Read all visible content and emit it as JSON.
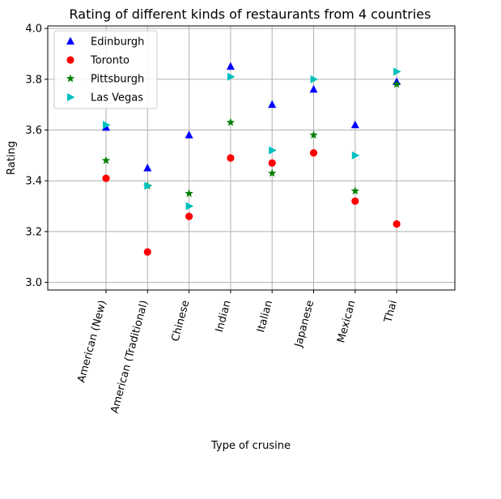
{
  "chart_data": {
    "type": "scatter",
    "title": "Rating of different kinds of restaurants from 4 countries",
    "xlabel": "Type of crusine",
    "ylabel": "Rating",
    "categories": [
      "American (New)",
      "American (Traditional)",
      "Chinese",
      "Indian",
      "Italian",
      "Japanese",
      "Mexican",
      "Thai"
    ],
    "ylim": [
      2.97,
      4.01
    ],
    "yticks": [
      "3.0",
      "3.2",
      "3.4",
      "3.6",
      "3.8",
      "4.0"
    ],
    "ytick_values": [
      3.0,
      3.2,
      3.4,
      3.6,
      3.8,
      4.0
    ],
    "grid": true,
    "legend_position": "top-left",
    "series": [
      {
        "name": "Edinburgh",
        "marker": "triangle-up",
        "color": "#0000ff",
        "values": [
          3.61,
          3.45,
          3.58,
          3.85,
          3.7,
          3.76,
          3.62,
          3.79
        ]
      },
      {
        "name": "Toronto",
        "marker": "circle",
        "color": "#ff0000",
        "values": [
          3.41,
          3.12,
          3.26,
          3.49,
          3.47,
          3.51,
          3.32,
          3.23
        ]
      },
      {
        "name": "Pittsburgh",
        "marker": "star",
        "color": "#008000",
        "values": [
          3.48,
          3.38,
          3.35,
          3.63,
          3.43,
          3.58,
          3.36,
          3.78
        ]
      },
      {
        "name": "Las Vegas",
        "marker": "triangle-right",
        "color": "#00bfbf",
        "values": [
          3.62,
          3.38,
          3.3,
          3.81,
          3.52,
          3.8,
          3.5,
          3.83
        ]
      }
    ]
  }
}
